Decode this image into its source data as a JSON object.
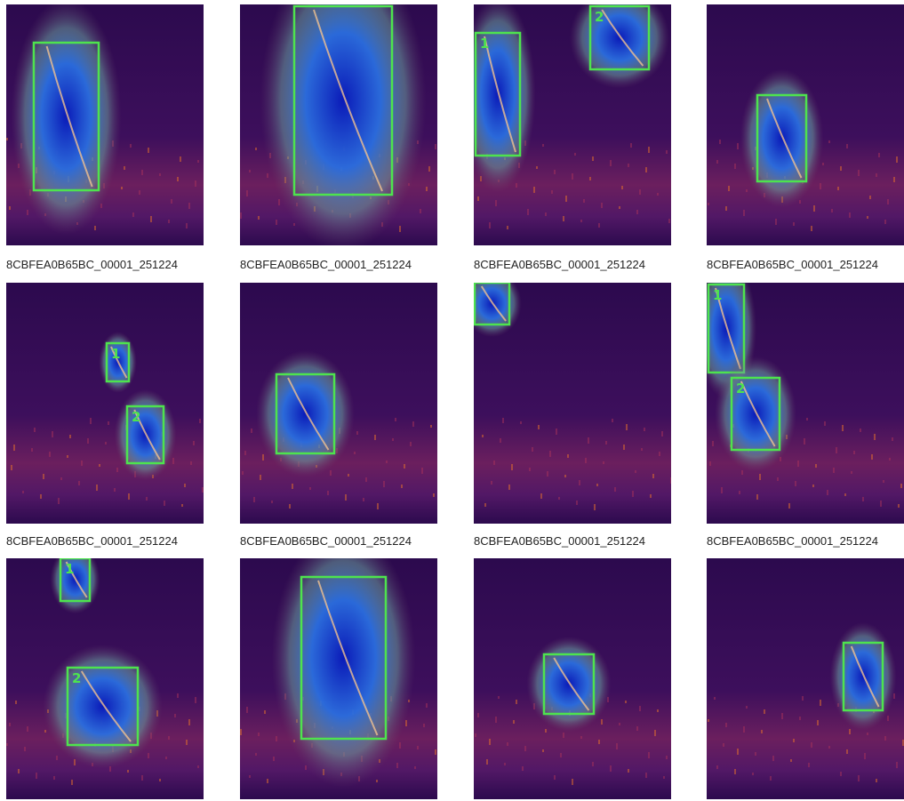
{
  "captions": [
    "8CBFEA0B65BC_00001_251224",
    "8CBFEA0B65BC_00001_251224",
    "8CBFEA0B65BC_00001_251224",
    "8CBFEA0B65BC_00001_251224",
    "8CBFEA0B65BC_00001_251224",
    "8CBFEA0B65BC_00001_251224",
    "8CBFEA0B65BC_00001_251224",
    "8CBFEA0B65BC_00001_251224"
  ],
  "labeled_boxes": [
    [
      "1",
      "2"
    ],
    [
      "1",
      "2"
    ],
    [
      "1",
      "2"
    ],
    [
      "1",
      "2"
    ]
  ]
}
